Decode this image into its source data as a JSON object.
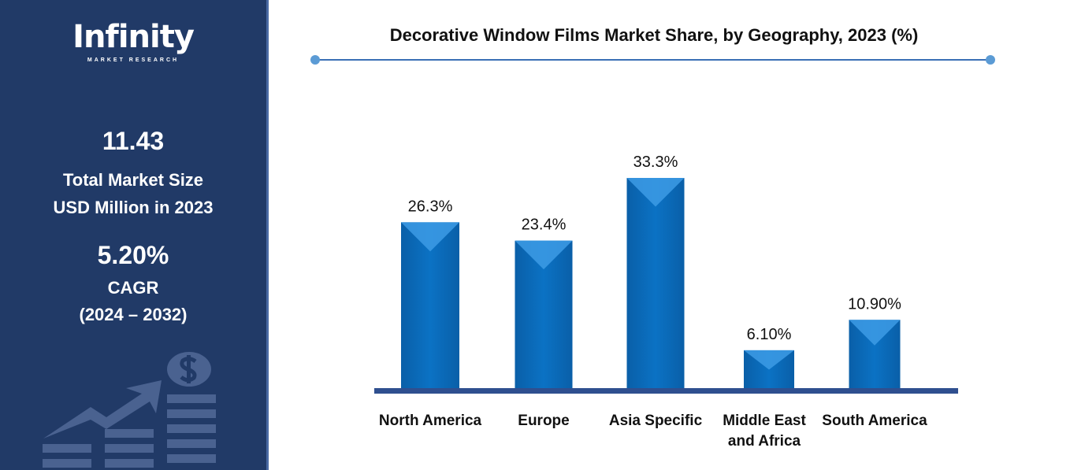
{
  "sidebar": {
    "logo_main": "Infinity",
    "logo_sub": "MARKET RESEARCH",
    "market_size": "11.43",
    "market_size_label_1": "Total Market Size",
    "market_size_label_2": "USD Million in 2023",
    "cagr": "5.20%",
    "cagr_label": "CAGR",
    "cagr_period": "(2024 – 2032)"
  },
  "colors": {
    "sidebar": "#213a67",
    "bar": "#0b6fbf",
    "axis": "#2f4f8f"
  },
  "chart_data": {
    "type": "bar",
    "title": "Decorative Window Films Market Share, by Geography, 2023 (%)",
    "categories": [
      "North America",
      "Europe",
      "Asia Specific",
      "Middle East and Africa",
      "South America"
    ],
    "category_lines": [
      [
        "North America"
      ],
      [
        "Europe"
      ],
      [
        "Asia Specific"
      ],
      [
        "Middle East",
        "and Africa"
      ],
      [
        "South America"
      ]
    ],
    "values": [
      26.3,
      23.4,
      33.3,
      6.1,
      10.9
    ],
    "data_labels": [
      "26.3%",
      "23.4%",
      "33.3%",
      "6.10%",
      "10.90%"
    ],
    "xlabel": "",
    "ylabel": "",
    "grid": false
  }
}
